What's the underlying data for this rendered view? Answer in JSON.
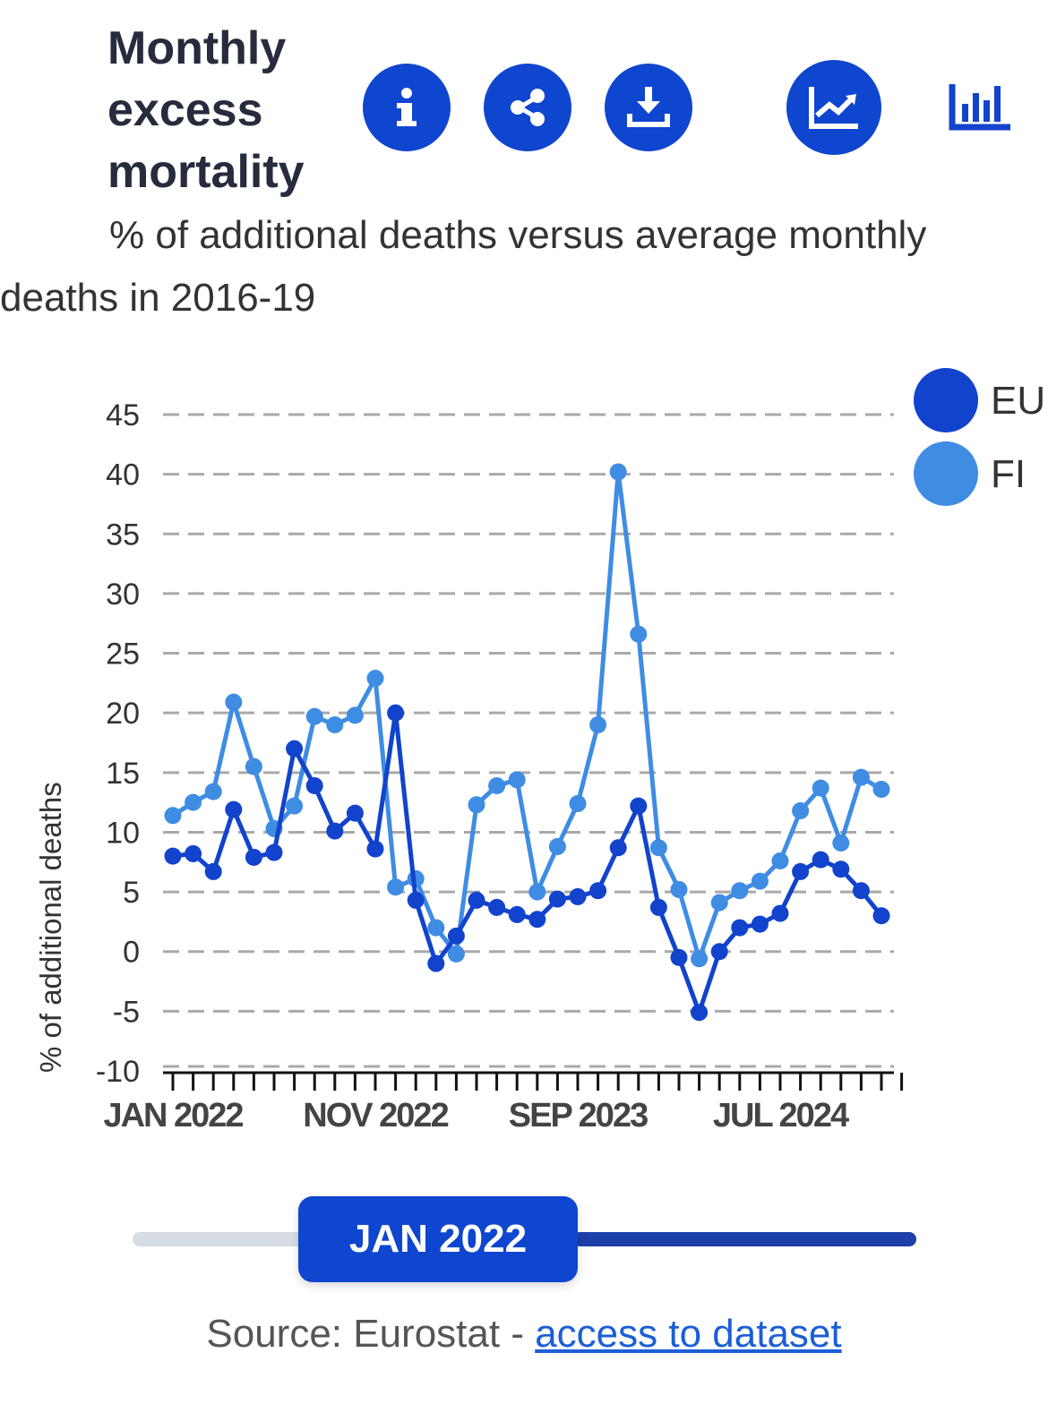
{
  "header": {
    "title": "Monthly excess mortality",
    "subtitle": "% of additional deaths versus average monthly deaths in 2016-19"
  },
  "toolbar": {
    "info_icon": "info-icon",
    "share_icon": "share-icon",
    "download_icon": "download-icon",
    "line_chart_icon": "line-chart-icon",
    "bar_chart_icon": "bar-chart-icon"
  },
  "colors": {
    "eu": "#1143cc",
    "fi": "#3f8ce3",
    "accent": "#0f46cf"
  },
  "chart_data": {
    "type": "line",
    "title": "Monthly excess mortality",
    "ylabel": "% of additional deaths",
    "xlabel": "",
    "ylim": [
      -10,
      45
    ],
    "yticks": [
      -10,
      -5,
      0,
      5,
      10,
      15,
      20,
      25,
      30,
      35,
      40,
      45
    ],
    "x_tick_labels": [
      {
        "index": 0,
        "label": "JAN 2022"
      },
      {
        "index": 10,
        "label": "NOV 2022"
      },
      {
        "index": 20,
        "label": "SEP 2023"
      },
      {
        "index": 30,
        "label": "JUL 2024"
      }
    ],
    "grid": true,
    "legend_position": "top-right",
    "categories": [
      "2022-01",
      "2022-02",
      "2022-03",
      "2022-04",
      "2022-05",
      "2022-06",
      "2022-07",
      "2022-08",
      "2022-09",
      "2022-10",
      "2022-11",
      "2022-12",
      "2023-01",
      "2023-02",
      "2023-03",
      "2023-04",
      "2023-05",
      "2023-06",
      "2023-07",
      "2023-08",
      "2023-09",
      "2023-10",
      "2023-11",
      "2023-12",
      "2024-01",
      "2024-02",
      "2024-03",
      "2024-04",
      "2024-05",
      "2024-06",
      "2024-07",
      "2024-08",
      "2024-09",
      "2024-10",
      "2024-11",
      "2024-12",
      "2025-01"
    ],
    "series": [
      {
        "name": "EU",
        "values": [
          8.0,
          8.2,
          6.7,
          11.9,
          7.9,
          8.3,
          17.0,
          13.9,
          10.1,
          11.6,
          8.6,
          20.0,
          4.3,
          -1.0,
          1.3,
          4.3,
          3.7,
          3.1,
          2.7,
          4.4,
          4.6,
          5.1,
          8.7,
          12.2,
          3.7,
          -0.5,
          -5.1,
          0.0,
          2.0,
          2.3,
          3.2,
          6.7,
          7.7,
          6.9,
          5.1,
          3.0,
          null
        ]
      },
      {
        "name": "FI",
        "values": [
          11.4,
          12.5,
          13.4,
          20.9,
          15.5,
          10.3,
          12.2,
          19.7,
          19.0,
          19.8,
          22.9,
          5.4,
          6.1,
          2.0,
          -0.2,
          12.3,
          13.9,
          14.4,
          5.0,
          8.8,
          12.4,
          19.0,
          40.2,
          26.6,
          8.7,
          5.2,
          -0.6,
          4.1,
          5.1,
          5.9,
          7.6,
          11.8,
          13.7,
          9.1,
          14.6,
          13.6,
          null
        ]
      }
    ]
  },
  "slider": {
    "label": "JAN 2022",
    "position_fraction": 0.0
  },
  "footer": {
    "source_prefix": "Source: Eurostat - ",
    "link_text": "access to dataset"
  }
}
